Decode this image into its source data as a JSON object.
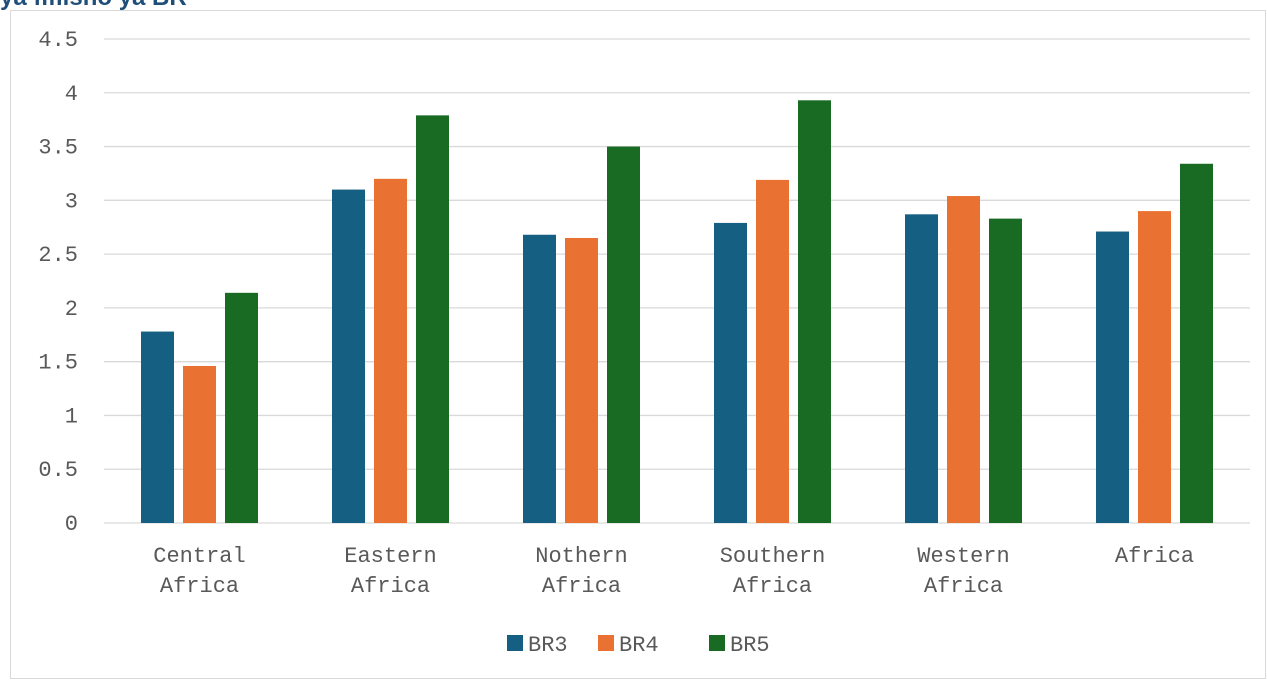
{
  "header": {
    "title_fragment": "ya fifiisho ya BR"
  },
  "chart_data": {
    "type": "bar",
    "categories": [
      [
        "Central",
        "Africa"
      ],
      [
        "Eastern",
        "Africa"
      ],
      [
        "Nothern",
        "Africa"
      ],
      [
        "Southern",
        "Africa"
      ],
      [
        "Western",
        "Africa"
      ],
      [
        "Africa"
      ]
    ],
    "series": [
      {
        "name": "BR3",
        "color": "#156082",
        "values": [
          1.78,
          3.1,
          2.68,
          2.79,
          2.87,
          2.71
        ]
      },
      {
        "name": "BR4",
        "color": "#e97132",
        "values": [
          1.46,
          3.2,
          2.65,
          3.19,
          3.04,
          2.9
        ]
      },
      {
        "name": "BR5",
        "color": "#196b24",
        "values": [
          2.14,
          3.79,
          3.5,
          3.93,
          2.83,
          3.34
        ]
      }
    ],
    "ylim": [
      0,
      4.5
    ],
    "yticks": [
      "0",
      "0.5",
      "1",
      "1.5",
      "2",
      "2.5",
      "3",
      "3.5",
      "4",
      "4.5"
    ],
    "grid": true,
    "legend_position": "bottom"
  }
}
